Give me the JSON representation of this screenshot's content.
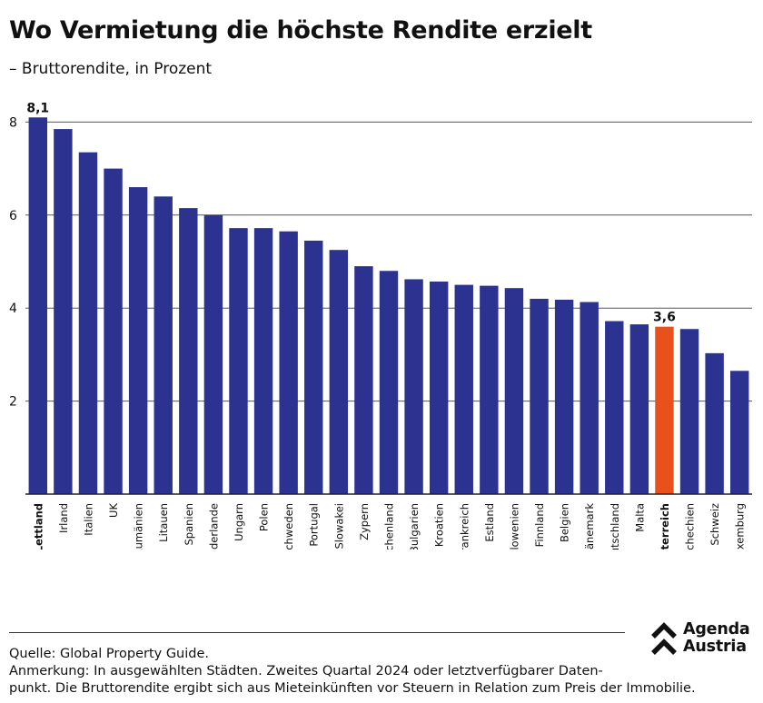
{
  "header": {
    "title": "Wo Vermietung die höchste Rendite erzielt",
    "subtitle": "– Bruttorendite, in Prozent"
  },
  "footer": {
    "source": "Quelle: Global Property Guide.",
    "note_line1": "Anmerkung: In ausgewählten Städten. Zweites Quartal 2024 oder letztverfügbarer Daten-",
    "note_line2": "punkt. Die Bruttorendite ergibt sich aus Mieteinkünften vor Steuern in Relation zum Preis der Immobilie."
  },
  "logo": {
    "line1": "Agenda",
    "line2": "Austria",
    "icon": "agenda-austria-chevron-icon"
  },
  "colors": {
    "bar": "#2b3290",
    "highlight": "#e8501c",
    "grid": "#555555",
    "axis": "#222222"
  },
  "chart_data": {
    "type": "bar",
    "categories": [
      "Lettland",
      "Irland",
      "Italien",
      "UK",
      "Rumänien",
      "Litauen",
      "Spanien",
      "Niederlande",
      "Ungarn",
      "Polen",
      "Schweden",
      "Portugal",
      "Slowakei",
      "Zypern",
      "Griechenland",
      "Bulgarien",
      "Kroatien",
      "Frankreich",
      "Estland",
      "Slowenien",
      "Finnland",
      "Belgien",
      "Dänemark",
      "Deutschland",
      "Malta",
      "Österreich",
      "Tschechien",
      "Schweiz",
      "Luxemburg"
    ],
    "values": [
      8.1,
      7.85,
      7.35,
      7.0,
      6.6,
      6.4,
      6.15,
      6.0,
      5.72,
      5.72,
      5.65,
      5.45,
      5.25,
      4.9,
      4.8,
      4.62,
      4.57,
      4.5,
      4.48,
      4.43,
      4.2,
      4.18,
      4.13,
      3.72,
      3.65,
      3.6,
      3.55,
      3.03,
      2.65
    ],
    "highlighted": [
      "Lettland",
      "Österreich"
    ],
    "data_labels": [
      {
        "category": "Lettland",
        "text": "8,1"
      },
      {
        "category": "Österreich",
        "text": "3,6"
      }
    ],
    "yticks": [
      2,
      4,
      6,
      8
    ],
    "ylim": [
      0,
      8.4
    ],
    "grid": true,
    "xlabel": "",
    "ylabel": ""
  }
}
